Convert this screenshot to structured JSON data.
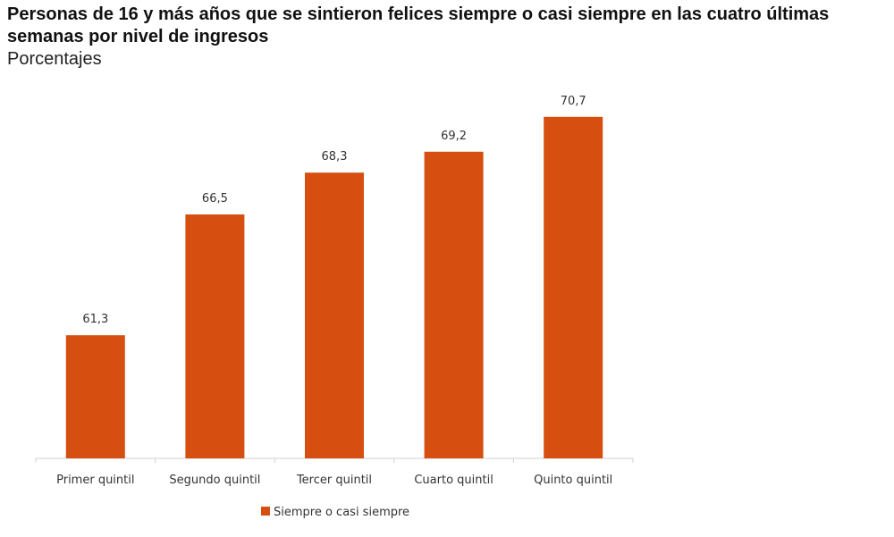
{
  "chart_data": {
    "type": "bar",
    "title": "Personas de 16 y más años que se sintieron felices siempre o casi siempre en las cuatro últimas semanas por nivel de ingresos",
    "subtitle": "Porcentajes",
    "categories": [
      "Primer quintil",
      "Segundo quintil",
      "Tercer quintil",
      "Cuarto quintil",
      "Quinto quintil"
    ],
    "series": [
      {
        "name": "Siempre o casi siempre",
        "values": [
          61.3,
          66.5,
          68.3,
          69.2,
          70.7
        ],
        "labels": [
          "61,3",
          "66,5",
          "68,3",
          "69,2",
          "70,7"
        ],
        "color": "#d64f10"
      }
    ],
    "xlabel": "",
    "ylabel": "",
    "ylim": [
      56,
      72
    ],
    "grid": false,
    "y_axis_visible": false,
    "legend_position": "bottom"
  }
}
